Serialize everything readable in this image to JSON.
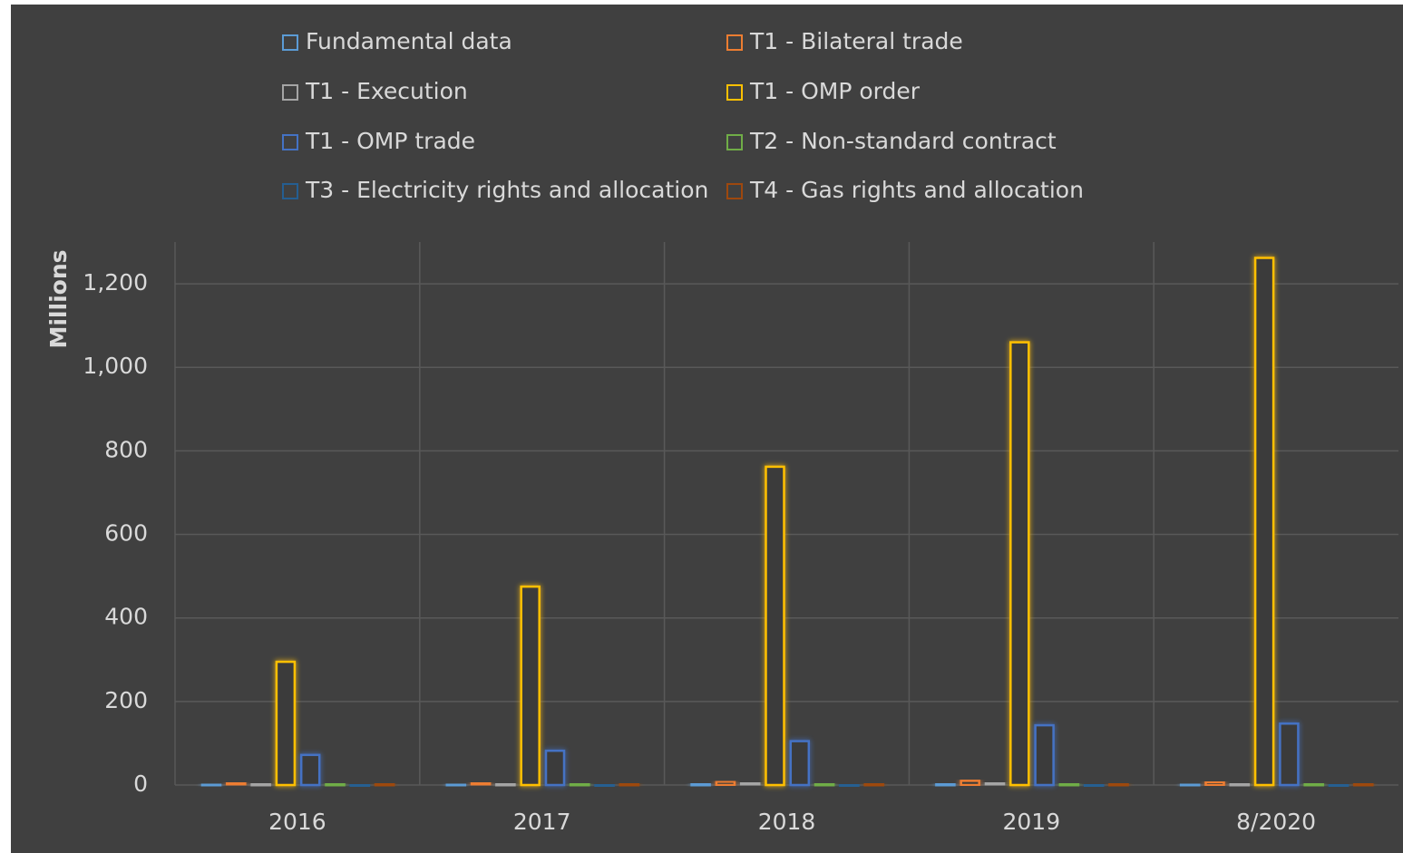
{
  "chart_data": {
    "type": "bar",
    "y_label": "Millions",
    "categories": [
      "2016",
      "2017",
      "2018",
      "2019",
      "8/2020"
    ],
    "series": [
      {
        "name": "Fundamental data",
        "color": "#5b9bd5",
        "values": [
          2,
          2,
          3,
          3,
          2
        ]
      },
      {
        "name": "T1 - Bilateral trade",
        "color": "#ed7d31",
        "values": [
          5,
          5,
          8,
          10,
          7
        ]
      },
      {
        "name": "T1 - Execution",
        "color": "#a5a5a5",
        "values": [
          3,
          3,
          5,
          5,
          3
        ]
      },
      {
        "name": "T1 - OMP order",
        "color": "#ffc000",
        "values": [
          295,
          475,
          762,
          1060,
          1262
        ]
      },
      {
        "name": "T1 - OMP trade",
        "color": "#4472c4",
        "values": [
          72,
          82,
          105,
          143,
          147
        ]
      },
      {
        "name": "T2 - Non-standard contract",
        "color": "#70ad47",
        "values": [
          3,
          3,
          3,
          3,
          3
        ]
      },
      {
        "name": "T3 - Electricity rights and allocation",
        "color": "#255e91",
        "values": [
          1,
          1,
          1,
          1,
          1
        ]
      },
      {
        "name": "T4 - Gas rights and allocation",
        "color": "#9e480e",
        "values": [
          3,
          3,
          3,
          3,
          3
        ]
      }
    ],
    "ylim": [
      0,
      1300
    ],
    "yticks": [
      0,
      200,
      400,
      600,
      800,
      {
        "value": 1000,
        "label": "1,000"
      },
      {
        "value": 1200,
        "label": "1,200"
      }
    ],
    "grid": true,
    "legend": "top"
  }
}
